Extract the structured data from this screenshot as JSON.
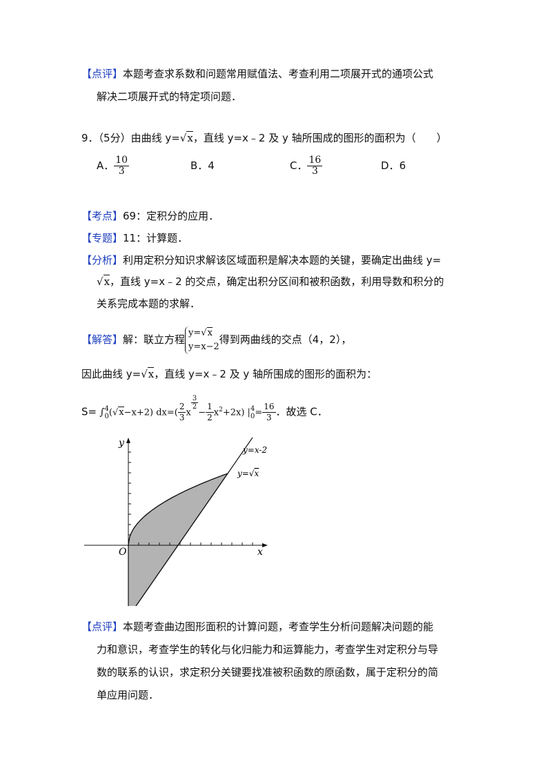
{
  "review1": {
    "tag": "【点评】",
    "line1": "本题考查求系数和问题常用赋值法、考查利用二项展开式的通项公式",
    "line2": "解决二项展开式的特定项问题．"
  },
  "question": {
    "prefix": "9．（5分）由曲线 y=",
    "sqrt_arg": "x",
    "suffix": "，直线 y=x﹣2 及 y 轴所围成的图形的面积为（　　）",
    "options": [
      {
        "label": "A．",
        "num": "10",
        "den": "3"
      },
      {
        "label": "B．",
        "value": "4"
      },
      {
        "label": "C．",
        "num": "16",
        "den": "3"
      },
      {
        "label": "D．",
        "value": "6"
      }
    ]
  },
  "kaodian": {
    "tag": "【考点】",
    "text": "69：定积分的应用．"
  },
  "zhuanti": {
    "tag": "【专题】",
    "text": "11：计算题．"
  },
  "fenxi": {
    "tag": "【分析】",
    "line1": "利用定积分知识求解该区域面积是解决本题的关键，要确定出曲线 y=",
    "line2_sqrt": "x",
    "line2": "，直线 y=x﹣2 的交点，确定出积分区间和被积函数，利用导数和积分的",
    "line3": "关系完成本题的求解．"
  },
  "jieda": {
    "tag": "【解答】",
    "text1": "解：联立方程",
    "eq1_prefix": "y=",
    "eq1_sqrt": "x",
    "eq2": "y=x−2",
    "text2": "得到两曲线的交点（4，2），"
  },
  "therefore": {
    "prefix": "因此曲线 y=",
    "sqrt_arg": "x",
    "suffix": "，直线 y=x﹣2 及 y 轴所围成的图形的面积为："
  },
  "formula": {
    "s": "S=",
    "integral": "∫",
    "upper": "4",
    "lower": "0",
    "integrand_open": "(",
    "integrand_sqrt": "x",
    "integrand_rest": "−x+2) dx=(",
    "c1_num": "2",
    "c1_den": "3",
    "x1": "x",
    "exp1_num": "3",
    "exp1_den": "2",
    "minus": "−",
    "c2_num": "1",
    "c2_den": "2",
    "x2": "x",
    "exp2": "2",
    "tail": "+2x)",
    "bar": "|",
    "eval_upper": "4",
    "eval_lower": "0",
    "eq": "=",
    "res_num": "16",
    "res_den": "3",
    "answer": "．故选 C．"
  },
  "graph": {
    "y_label": "y",
    "x_label": "x",
    "origin_label": "O",
    "line_label": "y=x-2",
    "curve_label_prefix": "y=",
    "curve_label_sqrt": "x",
    "fill_color": "#b3b3b3"
  },
  "review2": {
    "tag": "【点评】",
    "line1": "本题考查曲边图形面积的计算问题，考查学生分析问题解决问题的能",
    "line2": "力和意识，考查学生的转化与化归能力和运算能力，考查学生对定积分与导",
    "line3": "数的联系的认识，求定积分关键要找准被积函数的原函数，属于定积分的简",
    "line4": "单应用问题．"
  }
}
